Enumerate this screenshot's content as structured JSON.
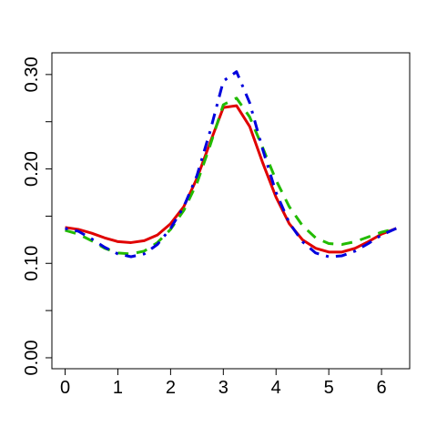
{
  "chart_data": {
    "type": "line",
    "x": [
      0,
      0.25,
      0.5,
      0.75,
      1,
      1.25,
      1.5,
      1.75,
      2,
      2.25,
      2.5,
      2.75,
      3,
      3.25,
      3.5,
      3.75,
      4,
      4.25,
      4.5,
      4.75,
      5,
      5.25,
      5.5,
      5.75,
      6,
      6.28
    ],
    "series": [
      {
        "color": "#e00000",
        "dash": "solid",
        "values": [
          0.138,
          0.136,
          0.132,
          0.127,
          0.123,
          0.122,
          0.124,
          0.13,
          0.142,
          0.16,
          0.19,
          0.228,
          0.265,
          0.267,
          0.245,
          0.206,
          0.17,
          0.142,
          0.125,
          0.116,
          0.112,
          0.112,
          0.116,
          0.123,
          0.131,
          0.137
        ]
      },
      {
        "color": "#22bb00",
        "dash": "dashed",
        "values": [
          0.135,
          0.131,
          0.124,
          0.116,
          0.111,
          0.11,
          0.113,
          0.122,
          0.136,
          0.156,
          0.185,
          0.225,
          0.268,
          0.275,
          0.255,
          0.222,
          0.188,
          0.16,
          0.14,
          0.127,
          0.121,
          0.12,
          0.123,
          0.128,
          0.133,
          0.137
        ]
      },
      {
        "color": "#0000dd",
        "dash": "dotdash",
        "values": [
          0.137,
          0.134,
          0.126,
          0.117,
          0.11,
          0.107,
          0.11,
          0.12,
          0.137,
          0.16,
          0.193,
          0.24,
          0.293,
          0.303,
          0.27,
          0.22,
          0.175,
          0.143,
          0.123,
          0.111,
          0.107,
          0.108,
          0.113,
          0.121,
          0.13,
          0.137
        ]
      }
    ],
    "xlim": [
      -0.251,
      6.534
    ],
    "xticks": [
      0,
      1,
      2,
      3,
      4,
      5,
      6
    ],
    "ylim": [
      -0.0116,
      0.323
    ],
    "yticks": [
      {
        "value": 0,
        "label": "0.00"
      },
      {
        "value": 0.05,
        "label": null
      },
      {
        "value": 0.1,
        "label": "0.10"
      },
      {
        "value": 0.15,
        "label": null
      },
      {
        "value": 0.2,
        "label": "0.20"
      },
      {
        "value": 0.25,
        "label": null
      },
      {
        "value": 0.3,
        "label": "0.30"
      }
    ],
    "grid": false
  }
}
